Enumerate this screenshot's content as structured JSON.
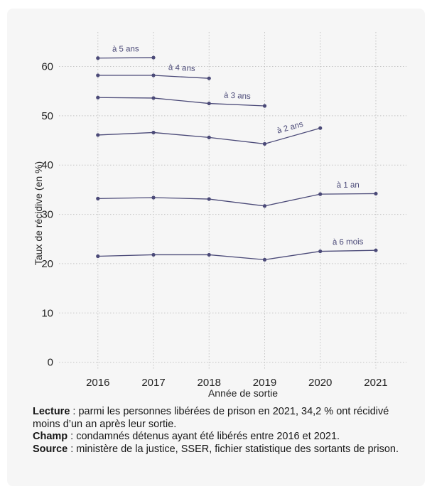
{
  "chart_data": {
    "type": "line",
    "title": "",
    "xlabel": "Année de sortie",
    "ylabel": "Taux de récidive (en %)",
    "x": [
      2016,
      2017,
      2018,
      2019,
      2020,
      2021
    ],
    "xlim": [
      2015.3,
      2021.55
    ],
    "ylim": [
      -1.5,
      67
    ],
    "yticks": [
      0,
      10,
      20,
      30,
      40,
      50,
      60
    ],
    "grid": true,
    "legend": "none (direct labels)",
    "line_color": "#4b4a78",
    "grid_color": "#c4c4c4",
    "series": [
      {
        "name": "à 5 ans",
        "values": [
          61.7,
          61.8,
          null,
          null,
          null,
          null
        ]
      },
      {
        "name": "à 4 ans",
        "values": [
          58.2,
          58.2,
          57.6,
          null,
          null,
          null
        ]
      },
      {
        "name": "à 3 ans",
        "values": [
          53.7,
          53.6,
          52.5,
          52.0,
          null,
          null
        ]
      },
      {
        "name": "à 2 ans",
        "values": [
          46.1,
          46.6,
          45.6,
          44.3,
          47.5,
          null
        ]
      },
      {
        "name": "à 1 an",
        "values": [
          33.2,
          33.4,
          33.1,
          31.7,
          34.1,
          34.2
        ]
      },
      {
        "name": "à 6 mois",
        "values": [
          21.5,
          21.8,
          21.8,
          20.8,
          22.5,
          22.7
        ]
      }
    ]
  },
  "notes": {
    "lecture_label": "Lecture",
    "lecture_text": " : parmi les personnes libérées de prison en 2021, 34,2 % ont récidivé moins d’un an après leur sortie.",
    "champ_label": "Champ",
    "champ_text": " : condamnés détenus ayant été libérés entre 2016 et 2021.",
    "source_label": "Source",
    "source_text": " : ministère de la justice, SSER, fichier statistique des sortants de prison."
  }
}
